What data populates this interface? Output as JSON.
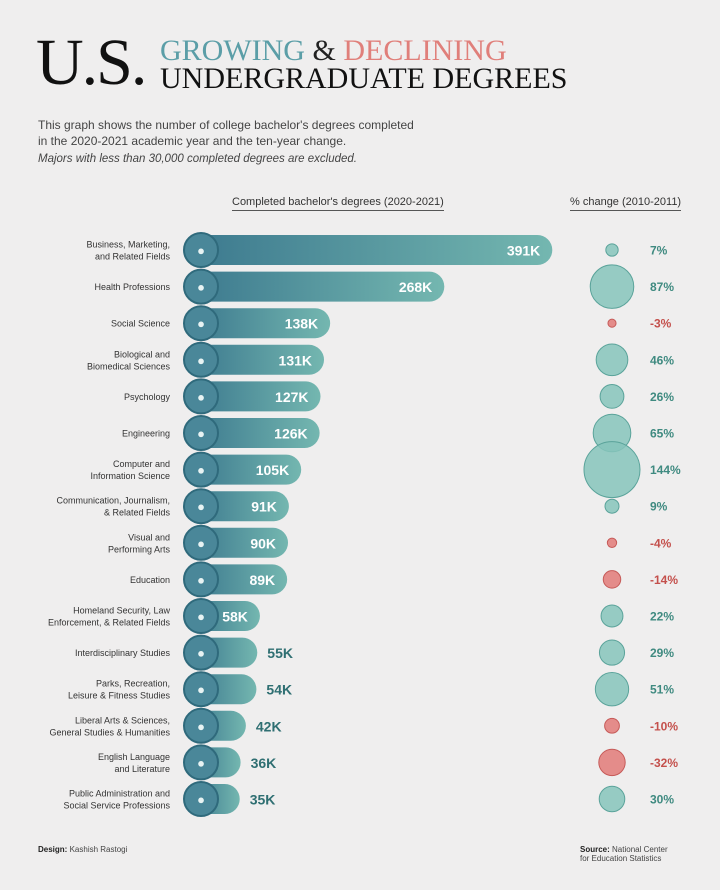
{
  "title": {
    "us": "U.S.",
    "growing": "GROWING",
    "amp": "&",
    "declining": "DECLINING",
    "line2": "UNDERGRADUATE DEGREES"
  },
  "description": {
    "line1": "This graph shows the number of college bachelor's degrees completed",
    "line2": "in the 2020-2021 academic year and the ten-year change.",
    "note": "Majors with less than 30,000 completed degrees are excluded."
  },
  "colors": {
    "bar_dark": "#3d7a8f",
    "bar_light": "#74b7b0",
    "positive": "#3f8a80",
    "negative": "#c4504c",
    "circle_pos": "#86c4bb",
    "circle_neg": "#e27a78"
  },
  "chart_data": {
    "type": "bar",
    "xlabel": "Completed bachelor's degrees (2020-2021)",
    "change_label": "% change (2010-2011)",
    "categories": [
      "Business, Marketing,\nand Related Fields",
      "Health Professions",
      "Social Science",
      "Biological and\nBiomedical Sciences",
      "Psychology",
      "Engineering",
      "Computer and\nInformation Science",
      "Communication, Journalism,\n& Related Fields",
      "Visual and\nPerforming Arts",
      "Education",
      "Homeland Security, Law\nEnforcement, & Related Fields",
      "Interdisciplinary Studies",
      "Parks, Recreation,\nLeisure & Fitness Studies",
      "Liberal Arts & Sciences,\nGeneral Studies & Humanities",
      "English Language\nand Literature",
      "Public Administration and\nSocial Service Professions"
    ],
    "icons": [
      "handshake-icon",
      "doctor-icon",
      "book-icon",
      "dna-icon",
      "head-icon",
      "graduation-cap-icon",
      "computer-user-icon",
      "people-icon",
      "theater-masks-icon",
      "chalkboard-icon",
      "handcuffs-icon",
      "puzzle-head-icon",
      "dumbbell-icon",
      "globe-icon",
      "document-icon",
      "helping-hand-icon"
    ],
    "values": [
      391,
      268,
      138,
      131,
      127,
      126,
      105,
      91,
      90,
      89,
      58,
      55,
      54,
      42,
      36,
      35
    ],
    "value_labels": [
      "391K",
      "268K",
      "138K",
      "131K",
      "127K",
      "126K",
      "105K",
      "91K",
      "90K",
      "89K",
      "58K",
      "55K",
      "54K",
      "42K",
      "36K",
      "35K"
    ],
    "pct_change": [
      7,
      87,
      -3,
      46,
      26,
      65,
      144,
      9,
      -4,
      -14,
      22,
      29,
      51,
      -10,
      -32,
      30
    ],
    "pct_labels": [
      "7%",
      "87%",
      "-3%",
      "46%",
      "26%",
      "65%",
      "144%",
      "9%",
      "-4%",
      "-14%",
      "22%",
      "29%",
      "51%",
      "-10%",
      "-32%",
      "30%"
    ]
  },
  "footer": {
    "design_label": "Design:",
    "design_name": "Kashish Rastogi",
    "source_label": "Source:",
    "source_line1": "National Center",
    "source_line2": "for Education Statistics"
  }
}
